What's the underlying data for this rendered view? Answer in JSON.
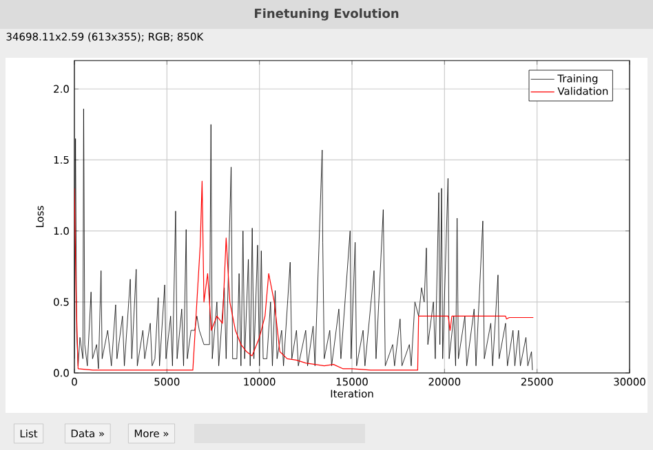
{
  "chart_data": {
    "type": "line",
    "title": "Finetuning Evolution",
    "xlabel": "Iteration",
    "ylabel": "Loss",
    "annotations": [
      "34698.11x2.59    (613x355); RGB; 850K",
      "List",
      "Data »",
      "More »"
    ],
    "xlim": [
      0,
      30000
    ],
    "ylim": [
      0,
      2.2
    ],
    "xticks": [
      0,
      5000,
      10000,
      15000,
      20000,
      25000,
      30000
    ],
    "yticks": [
      {
        "value": 0,
        "label": "0.0"
      },
      {
        "value": 0.5,
        "label": "0.5"
      },
      {
        "value": 1,
        "label": "1.0"
      },
      {
        "value": 1.5,
        "label": "1.5"
      },
      {
        "value": 2,
        "label": "2.0"
      }
    ],
    "grid": true,
    "legend": "top right",
    "series": [
      {
        "name": "Training",
        "color": "#000000",
        "x": [
          0,
          60,
          120,
          200,
          300,
          420,
          460,
          500,
          560,
          700,
          900,
          980,
          1200,
          1300,
          1440,
          1500,
          1800,
          2000,
          2230,
          2300,
          2600,
          2700,
          3020,
          3100,
          3340,
          3400,
          3700,
          3800,
          4100,
          4200,
          4310,
          4350,
          4530,
          4600,
          4880,
          4950,
          5200,
          5300,
          5470,
          5550,
          5800,
          5900,
          6040,
          6100,
          6300,
          6440,
          6500,
          6560,
          6620,
          6690,
          6750,
          6900,
          7000,
          7260,
          7300,
          7380,
          7450,
          7700,
          7800,
          8100,
          8200,
          8470,
          8550,
          8720,
          8780,
          8900,
          9000,
          9110,
          9200,
          9400,
          9500,
          9610,
          9700,
          9900,
          10000,
          10100,
          10200,
          10330,
          10400,
          10600,
          10700,
          10850,
          10950,
          11200,
          11300,
          11660,
          11750,
          12000,
          12100,
          12500,
          12600,
          12900,
          13000,
          13390,
          13420,
          13500,
          13800,
          13900,
          14290,
          14400,
          14900,
          14950,
          15170,
          15250,
          15600,
          15700,
          16190,
          16300,
          16690,
          16800,
          17200,
          17300,
          17600,
          17700,
          18100,
          18200,
          18400,
          18530,
          18600,
          18700,
          18760,
          18830,
          18900,
          19020,
          19100,
          19400,
          19500,
          19690,
          19750,
          19840,
          19900,
          20190,
          20250,
          20500,
          20600,
          20680,
          20750,
          21100,
          21200,
          21600,
          21700,
          22070,
          22150,
          22500,
          22600,
          22890,
          22950,
          23300,
          23400,
          23700,
          23800,
          24000,
          24100,
          24400,
          24500,
          24700,
          24750
        ],
        "values": [
          0.1,
          1.65,
          0.3,
          0.05,
          0.25,
          null,
          0.1,
          1.86,
          0.2,
          0.05,
          0.57,
          0.1,
          0.2,
          0.03,
          0.72,
          0.1,
          0.3,
          0.05,
          0.48,
          0.1,
          0.4,
          0.05,
          0.66,
          0.1,
          0.73,
          0.05,
          0.3,
          0.1,
          0.35,
          0.05,
          null,
          0.1,
          0.53,
          0.05,
          0.62,
          0.1,
          0.4,
          0.05,
          1.14,
          0.1,
          0.45,
          0.05,
          1.01,
          0.1,
          0.3,
          null,
          0.3,
          null,
          0.4,
          null,
          0.3,
          null,
          0.2,
          null,
          0.2,
          1.75,
          0.1,
          0.5,
          0.05,
          0.6,
          0.1,
          1.45,
          0.1,
          null,
          0.1,
          0.7,
          0.05,
          1.0,
          0.1,
          0.8,
          0.05,
          1.02,
          0.1,
          0.9,
          0.05,
          0.86,
          0.1,
          null,
          0.1,
          0.5,
          0.05,
          0.58,
          0.1,
          0.3,
          0.05,
          0.78,
          0.1,
          0.3,
          0.05,
          0.3,
          0.05,
          0.33,
          0.05,
          1.57,
          0.92,
          0.1,
          0.3,
          0.05,
          0.45,
          0.1,
          1.0,
          0.1,
          0.92,
          0.05,
          0.3,
          0.05,
          0.72,
          0.1,
          1.15,
          0.05,
          0.2,
          0.05,
          0.38,
          0.05,
          0.2,
          0.05,
          0.5,
          null,
          0.4,
          null,
          0.6,
          null,
          0.5,
          0.88,
          0.2,
          0.5,
          0.1,
          1.27,
          0.2,
          1.3,
          0.1,
          1.37,
          0.1,
          0.4,
          0.05,
          1.09,
          0.1,
          0.4,
          0.05,
          0.45,
          0.05,
          1.07,
          0.1,
          0.35,
          0.05,
          0.69,
          0.1,
          0.35,
          0.05,
          0.3,
          0.05,
          0.3,
          0.05,
          0.25,
          0.05,
          0.15,
          0.02
        ]
      },
      {
        "name": "Validation",
        "color": "#ff0000",
        "x": [
          0,
          100,
          200,
          1000,
          6400,
          6500,
          6700,
          6800,
          6900,
          7000,
          7200,
          7400,
          7700,
          8000,
          8200,
          8400,
          8700,
          9000,
          9300,
          9600,
          10000,
          10300,
          10500,
          10800,
          11100,
          11500,
          12000,
          12500,
          13000,
          13500,
          14000,
          14500,
          15000,
          16000,
          18550,
          18600,
          20200,
          20300,
          20400,
          23300,
          23350,
          23500,
          24800
        ],
        "values": [
          1.3,
          0.5,
          0.03,
          0.02,
          0.02,
          null,
          null,
          0.9,
          1.35,
          0.5,
          0.7,
          0.3,
          0.4,
          0.35,
          0.95,
          0.5,
          0.3,
          0.2,
          0.15,
          0.12,
          0.25,
          0.4,
          0.7,
          0.5,
          0.15,
          0.1,
          0.09,
          0.07,
          0.06,
          0.05,
          0.06,
          0.03,
          0.03,
          0.02,
          0.02,
          0.4,
          0.4,
          0.3,
          0.4,
          0.4,
          0.38,
          0.39,
          0.39
        ]
      }
    ]
  }
}
